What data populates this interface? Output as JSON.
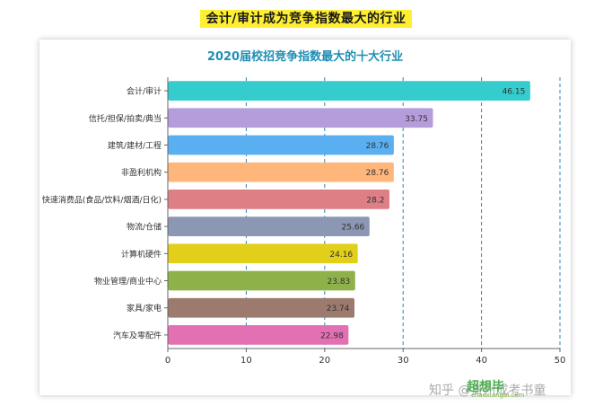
{
  "page": {
    "heading": "会计/审计成为竞争指数最大的行业"
  },
  "watermark": {
    "logo": "超想毕",
    "logo_sub": "chaoxiangbi.com",
    "text": "知乎 @贵州成考书童"
  },
  "chart_data": {
    "type": "bar",
    "orientation": "horizontal",
    "title": "2020届校招竞争指数最大的十大行业",
    "xlabel": "",
    "ylabel": "",
    "xlim": [
      0,
      50
    ],
    "xticks": [
      0,
      10,
      20,
      30,
      40,
      50
    ],
    "grid": "vertical-dashed",
    "categories": [
      "会计/审计",
      "信托/担保/拍卖/典当",
      "建筑/建材/工程",
      "非盈利机构",
      "快速消费品(食品/饮料/烟酒/日化)",
      "物流/仓储",
      "计算机硬件",
      "物业管理/商业中心",
      "家具/家电",
      "汽车及零配件"
    ],
    "values": [
      46.15,
      33.75,
      28.76,
      28.76,
      28.2,
      25.66,
      24.16,
      23.83,
      23.74,
      22.98
    ],
    "value_labels": [
      "46.15",
      "33.75",
      "28.76",
      "28.76",
      "28.2",
      "25.66",
      "24.16",
      "23.83",
      "23.74",
      "22.98"
    ],
    "colors": [
      "#34cccc",
      "#b59ddb",
      "#5aaff0",
      "#ffb67a",
      "#de7f85",
      "#8b97b3",
      "#e2cf1a",
      "#8fb14a",
      "#9c7a6e",
      "#e370b2"
    ]
  }
}
